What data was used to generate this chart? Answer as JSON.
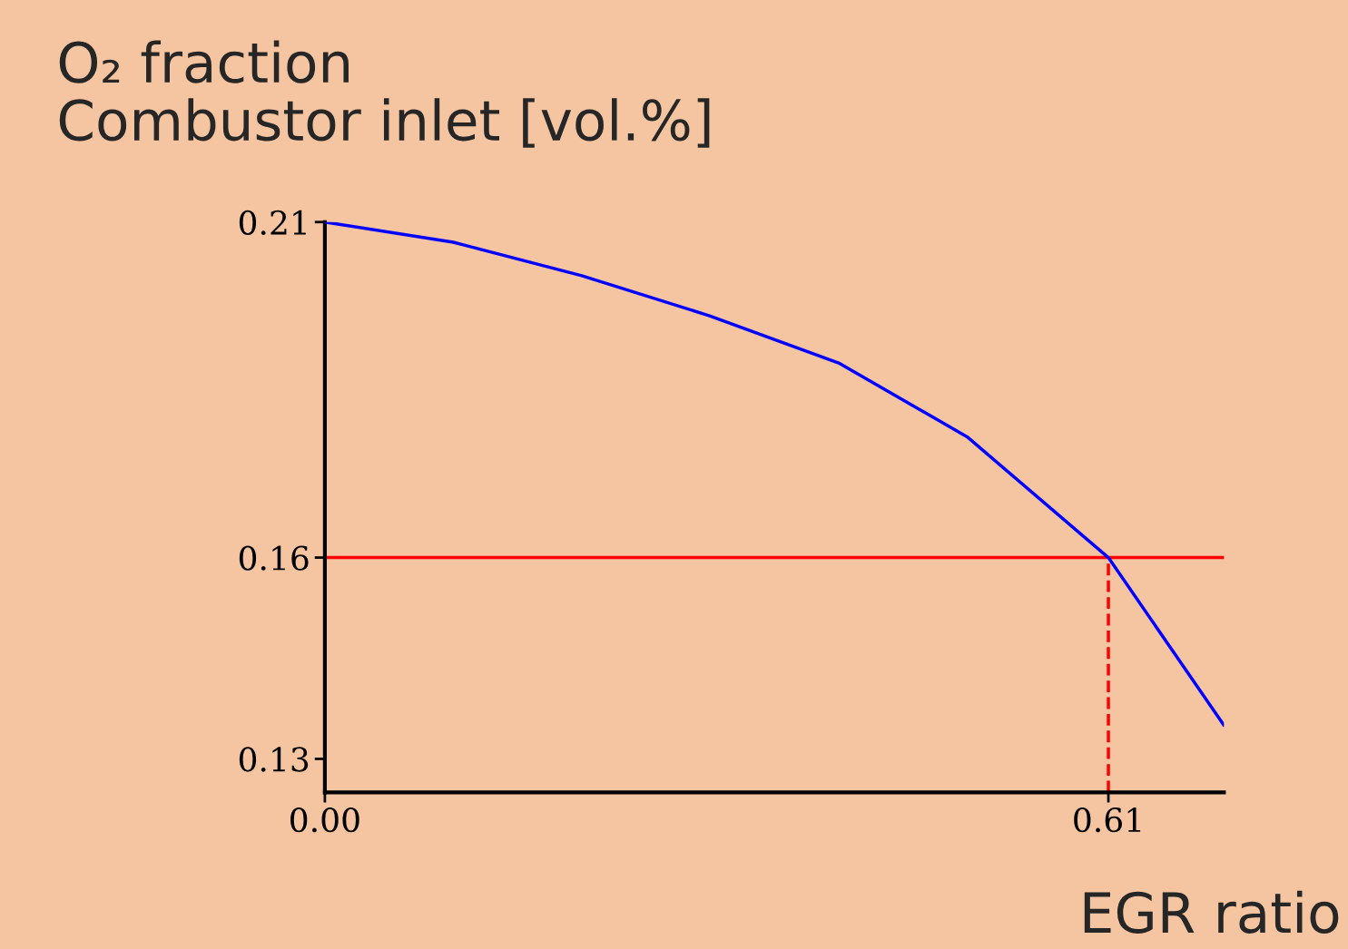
{
  "chart_data": {
    "type": "line",
    "ylabel": "O₂ fraction\nCombustor inlet [vol.%]",
    "xlabel": "EGR ratio",
    "x": [
      0,
      0.1,
      0.2,
      0.3,
      0.4,
      0.5,
      0.61,
      0.7
    ],
    "series": [
      {
        "color": "#0000ff",
        "values": [
          0.21,
          0.207,
          0.202,
          0.196,
          0.189,
          0.178,
          0.16,
          0.135
        ]
      }
    ],
    "xlim": [
      0,
      0.7
    ],
    "ylim": [
      0.125,
      0.21
    ],
    "xticks": [
      {
        "value": 0,
        "label": "0.00"
      },
      0.61
    ],
    "yticks": [
      0.13,
      0.16,
      0.21
    ],
    "ref_lines": [
      {
        "axis": "y",
        "value": 0.16,
        "color": "#ff0000",
        "line_style": "solid"
      },
      {
        "axis": "x",
        "value": 0.61,
        "color": "#ff0000",
        "line_style": "dashed"
      }
    ],
    "grid": false,
    "legend": false,
    "marker": "none",
    "line_style": "solid"
  }
}
